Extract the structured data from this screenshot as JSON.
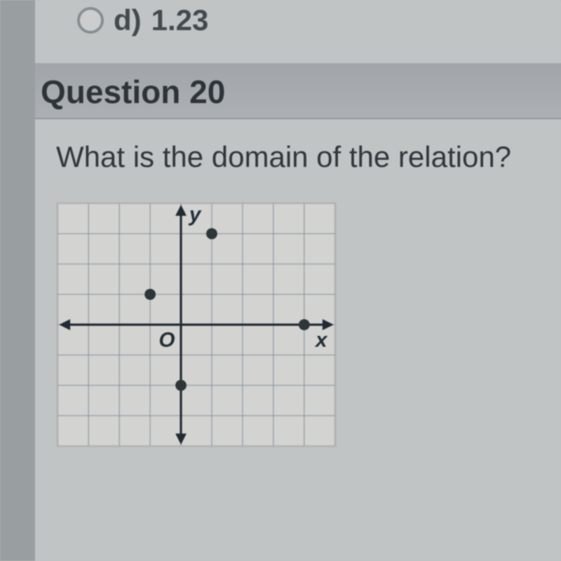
{
  "prev_option": {
    "letter": "d)",
    "value": "1.23"
  },
  "question": {
    "number": "Question 20",
    "prompt": "What is the domain of the relation?"
  },
  "chart": {
    "type": "scatter",
    "background_color": "#dcdcda",
    "grid_color": "#7d8d9c",
    "axis_color": "#1c2730",
    "xlim": [
      -4,
      5
    ],
    "ylim": [
      -4,
      4
    ],
    "grid_step": 1,
    "x_axis_label": "x",
    "y_axis_label": "y",
    "origin_label": "O",
    "point_radius": 8,
    "point_color": "#2a3336",
    "points": [
      {
        "x": -1,
        "y": 1
      },
      {
        "x": 1,
        "y": 3
      },
      {
        "x": 0,
        "y": -2
      },
      {
        "x": 4,
        "y": 0
      }
    ]
  }
}
